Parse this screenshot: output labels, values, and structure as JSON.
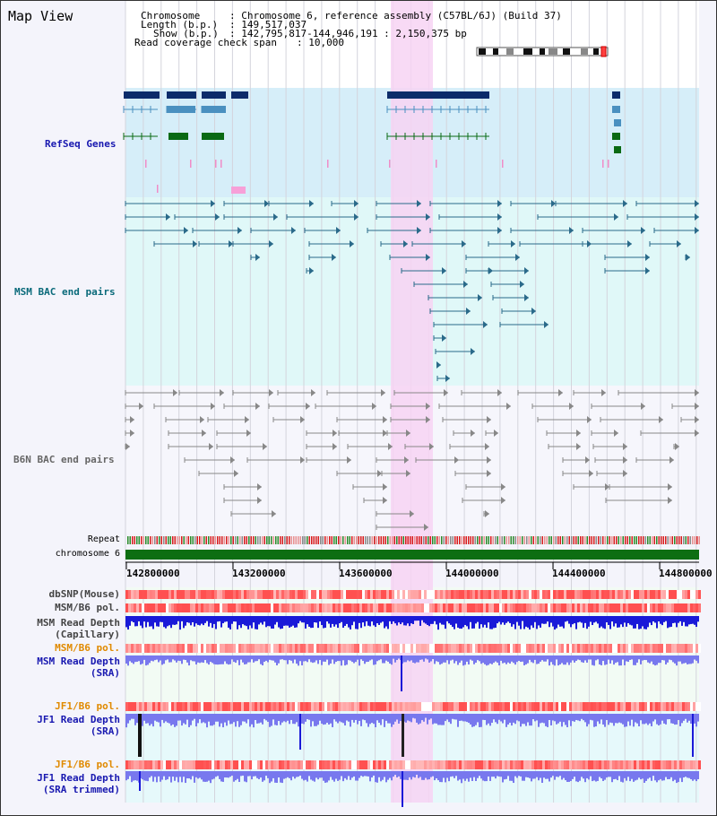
{
  "title": "Map View",
  "header": {
    "chromosome_key": "Chromosome",
    "chromosome_value": ": Chromosome 6, reference assembly (C57BL/6J) (Build 37)",
    "length_key": "Length (b.p.)",
    "length_value": ": 149,517,037",
    "show_key": "Show (b.p.)",
    "show_value": ": 142,795,817-144,946,191 : 2,150,375 bp",
    "coverage_key": "Read coverage check span",
    "coverage_value": ": 10,000"
  },
  "tracks": {
    "refseq": "RefSeq Genes",
    "msm_bac": "MSM BAC end pairs",
    "b6n_bac": "B6N BAC end pairs",
    "repeat": "Repeat",
    "chromosome": "chromosome 6",
    "dbsnp": "dbSNP(Mouse)",
    "msm_b6_pol": "MSM/B6 pol.",
    "msm_read_depth_cap": "MSM Read Depth",
    "msm_read_depth_cap_sub": "(Capillary)",
    "msm_b6_pol2": "MSM/B6 pol.",
    "msm_read_depth_sra": "MSM Read Depth",
    "msm_read_depth_sra_sub": "(SRA)",
    "jf1_b6_pol": "JF1/B6 pol.",
    "jf1_read_depth_sra": "JF1 Read Depth",
    "jf1_read_depth_sra_sub": "(SRA)",
    "jf1_b6_pol2": "JF1/B6 pol.",
    "jf1_read_depth_trim": "JF1 Read Depth",
    "jf1_read_depth_trim_sub": "(SRA trimmed)"
  },
  "axis_ticks": [
    "142800000",
    "143200000",
    "143600000",
    "144000000",
    "144400000",
    "144800000"
  ],
  "colors": {
    "refseq_bg": "#d6eef9",
    "msm_bg": "#e0f8f8",
    "b6n_bg": "#f4f4fb",
    "highlight": "#f7d3f3",
    "gene_navy": "#0c2c6a",
    "gene_blue": "#4a90c0",
    "gene_green": "#0a6a14",
    "msm_line": "#2a6a8a",
    "b6n_line": "#888888",
    "depth_blue": "#1a1ad8",
    "depth_light": "#7878ee"
  }
}
